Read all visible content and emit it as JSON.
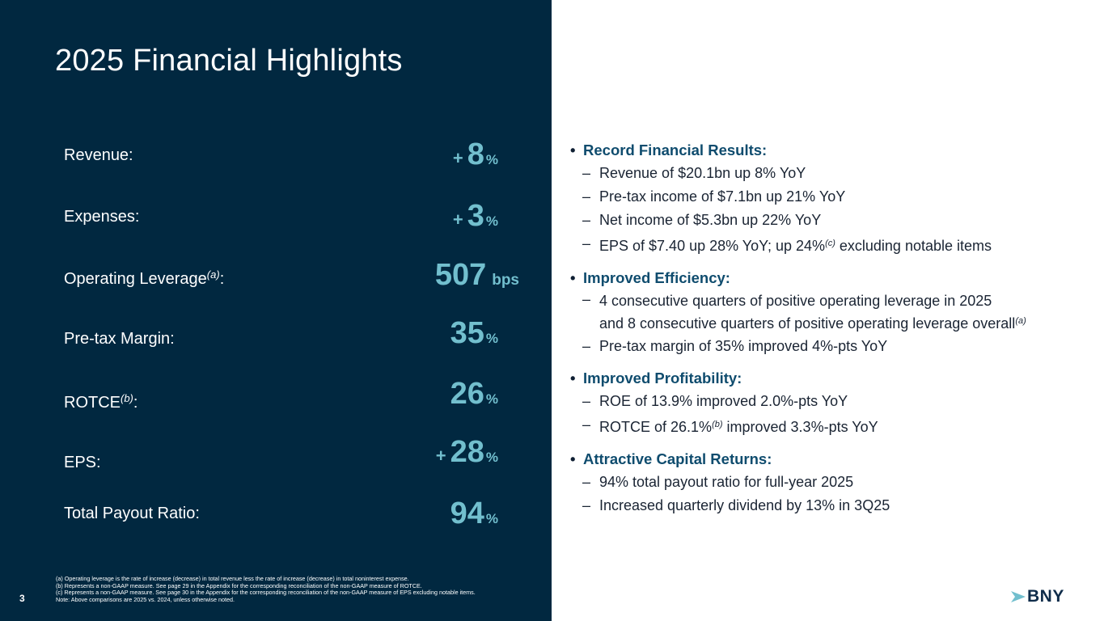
{
  "title": "2025 Financial Highlights",
  "metrics": [
    {
      "label": "Revenue:",
      "sup": "",
      "prefix": "+",
      "value": "8",
      "unit": "%"
    },
    {
      "label": "Expenses:",
      "sup": "",
      "prefix": "+",
      "value": "3",
      "unit": "%"
    },
    {
      "label": "Operating Leverage",
      "sup": "(a)",
      "suffix": ":",
      "prefix": "",
      "value": "507",
      "unit": "bps"
    },
    {
      "label": "Pre-tax Margin:",
      "sup": "",
      "prefix": "",
      "value": "35",
      "unit": "%"
    },
    {
      "label": "ROTCE",
      "sup": "(b)",
      "suffix": ":",
      "prefix": "",
      "value": "26",
      "unit": "%"
    },
    {
      "label": "EPS:",
      "sup": "",
      "prefix": "+",
      "value": "28",
      "unit": "%"
    },
    {
      "label": "Total Payout Ratio:",
      "sup": "",
      "prefix": "",
      "value": "94",
      "unit": "%"
    }
  ],
  "footnotes": {
    "a": "(a) Operating leverage is the rate of increase (decrease) in total revenue less the rate of increase (decrease) in total noninterest expense.",
    "b": "(b) Represents a non-GAAP measure. See page 29 in the Appendix for the corresponding reconciliation of the non-GAAP measure of ROTCE.",
    "c": "(c) Represents a non-GAAP measure. See page 30 in the Appendix for the corresponding reconciliation of the non-GAAP measure of EPS excluding notable items.",
    "note": "Note: Above comparisons are 2025 vs. 2024, unless otherwise noted."
  },
  "page_number": "3",
  "bullets": {
    "record": {
      "heading": "Record Financial Results:",
      "items": [
        "Revenue of $20.1bn up 8% YoY",
        "Pre-tax income of $7.1bn up 21% YoY",
        "Net income of $5.3bn up 22% YoY"
      ],
      "eps_pre": "EPS of $7.40 up 28% YoY; up 24%",
      "eps_sup": "(c)",
      "eps_post": " excluding notable items"
    },
    "efficiency": {
      "heading": "Improved Efficiency:",
      "line1": "4 consecutive quarters of positive operating leverage in 2025",
      "line2": "and 8 consecutive quarters of positive operating leverage overall",
      "line2_sup": "(a)",
      "item2": "Pre-tax margin of 35% improved 4%-pts YoY"
    },
    "profitability": {
      "heading": "Improved Profitability:",
      "item1": "ROE of 13.9% improved 2.0%-pts YoY",
      "item2_pre": "ROTCE of 26.1%",
      "item2_sup": "(b)",
      "item2_post": " improved 3.3%-pts YoY"
    },
    "capital": {
      "heading": "Attractive Capital Returns:",
      "items": [
        "94% total payout ratio for full-year 2025",
        "Increased quarterly dividend by 13% in 3Q25"
      ]
    },
    "bullet_glyph": "•",
    "dash_glyph": "–"
  },
  "logo": {
    "text": "BNY",
    "icon": "arrow-chevron-icon",
    "color": "#0f2c4a",
    "accent": "#72bfce"
  }
}
